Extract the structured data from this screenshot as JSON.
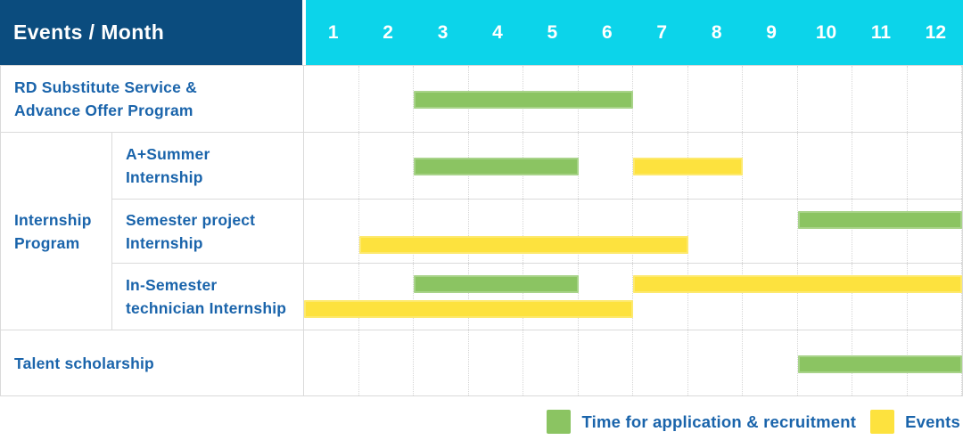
{
  "colors": {
    "navy": "#0b4c7e",
    "cyan": "#0cd4ea",
    "green": "#8bc462",
    "yellow": "#fde23e",
    "text_blue": "#1a64ab",
    "grid": "#dadada"
  },
  "table": {
    "corner_label": "Events / Month",
    "months": [
      "1",
      "2",
      "3",
      "4",
      "5",
      "6",
      "7",
      "8",
      "9",
      "10",
      "11",
      "12"
    ],
    "group": {
      "line1": "Internship",
      "line2": "Program"
    },
    "rows": [
      {
        "line1": "RD Substitute Service &",
        "line2": "Advance Offer Program"
      },
      {
        "line1": "A+Summer",
        "line2": "Internship"
      },
      {
        "line1": "Semester project",
        "line2": "Internship"
      },
      {
        "line1": "In-Semester",
        "line2": "technician Internship"
      },
      {
        "line1": "Talent scholarship",
        "line2": ""
      }
    ]
  },
  "legend": {
    "items": [
      {
        "label": "Time for application & recruitment",
        "color": "#8bc462"
      },
      {
        "label": "Events",
        "color": "#fde23e"
      }
    ]
  },
  "chart_data": {
    "type": "gantt",
    "x_unit": "month",
    "x_range": [
      1,
      12
    ],
    "legend": {
      "application": "Time for application & recruitment",
      "event": "Events"
    },
    "rows": [
      {
        "group": "",
        "label": "RD Substitute Service & Advance Offer Program",
        "bars": [
          {
            "kind": "application",
            "start_month": 3,
            "end_month": 6,
            "line": "single"
          }
        ]
      },
      {
        "group": "Internship Program",
        "label": "A+Summer Internship",
        "bars": [
          {
            "kind": "application",
            "start_month": 3,
            "end_month": 5,
            "line": "single"
          },
          {
            "kind": "event",
            "start_month": 7,
            "end_month": 8,
            "line": "single"
          }
        ]
      },
      {
        "group": "Internship Program",
        "label": "Semester project Internship",
        "bars": [
          {
            "kind": "application",
            "start_month": 10,
            "end_month": 12,
            "line": "top"
          },
          {
            "kind": "event",
            "start_month": 2,
            "end_month": 7,
            "line": "bottom"
          }
        ]
      },
      {
        "group": "Internship Program",
        "label": "In-Semester technician Internship",
        "bars": [
          {
            "kind": "application",
            "start_month": 3,
            "end_month": 5,
            "line": "top"
          },
          {
            "kind": "event",
            "start_month": 7,
            "end_month": 12,
            "line": "top"
          },
          {
            "kind": "event",
            "start_month": 1,
            "end_month": 6,
            "line": "bottom"
          }
        ]
      },
      {
        "group": "",
        "label": "Talent scholarship",
        "bars": [
          {
            "kind": "application",
            "start_month": 10,
            "end_month": 12,
            "line": "single"
          }
        ]
      }
    ]
  }
}
